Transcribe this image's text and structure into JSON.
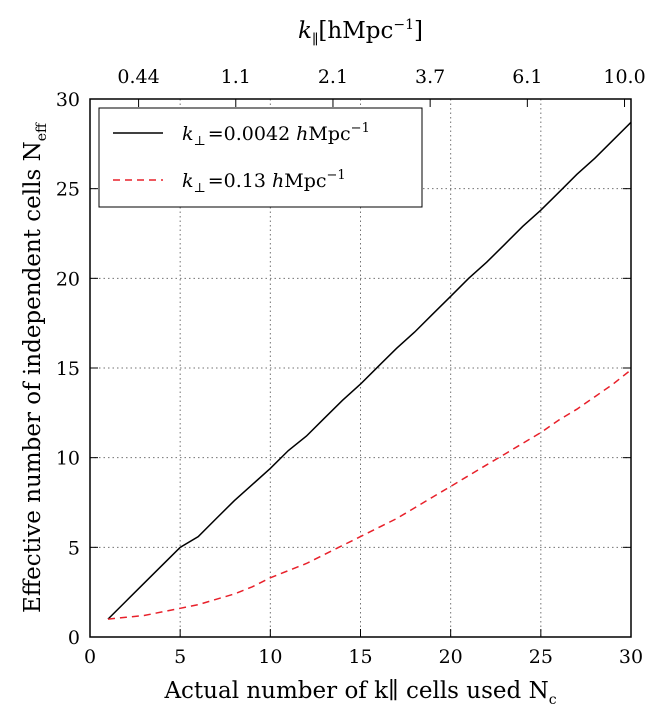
{
  "chart_data": {
    "type": "line",
    "x_label": "Actual number of k∥ cells used N",
    "x_label_sub": "c",
    "y_label": "Effective number of independent cells N",
    "y_label_sub": "eff",
    "top_label_k": "k",
    "top_label_sub": "∥",
    "top_label_units": "[hMpc",
    "top_label_exp": "−1",
    "top_label_close": "]",
    "xlim": [
      0,
      30
    ],
    "ylim": [
      0,
      30
    ],
    "x_ticks": [
      0,
      5,
      10,
      15,
      20,
      25,
      30
    ],
    "y_ticks": [
      0,
      5,
      10,
      15,
      20,
      25,
      30
    ],
    "top_ticks": [
      {
        "x": 4,
        "label": "0.44"
      },
      {
        "x": 10,
        "label": "1.1"
      },
      {
        "x": 16,
        "label": "2.1"
      },
      {
        "x": 22,
        "label": "3.7"
      },
      {
        "x": 28,
        "label": "6.1"
      },
      {
        "x": 34,
        "label": "10.0"
      }
    ],
    "grid": true,
    "legend_position": "top-left",
    "series": [
      {
        "name_k": "k",
        "name_sub": "⊥",
        "name_value": "=0.0042",
        "name_units": "hMpc",
        "name_exp": "−1",
        "color": "#000000",
        "dash": "solid",
        "x": [
          1,
          2,
          3,
          4,
          5,
          6,
          7,
          8,
          9,
          10,
          11,
          12,
          13,
          14,
          15,
          16,
          17,
          18,
          19,
          20,
          21,
          22,
          23,
          24,
          25,
          26,
          27,
          28,
          29,
          30
        ],
        "y": [
          1.0,
          2.0,
          3.0,
          4.0,
          5.0,
          5.6,
          6.6,
          7.6,
          8.5,
          9.4,
          10.4,
          11.2,
          12.2,
          13.2,
          14.1,
          15.1,
          16.1,
          17.0,
          18.0,
          19.0,
          20.0,
          20.9,
          21.9,
          22.9,
          23.8,
          24.8,
          25.8,
          26.7,
          27.7,
          28.7
        ]
      },
      {
        "name_k": "k",
        "name_sub": "⊥",
        "name_value": "=0.13",
        "name_units": "hMpc",
        "name_exp": "−1",
        "color": "#e8202a",
        "dash": "dashed",
        "x": [
          1,
          2,
          3,
          4,
          5,
          6,
          7,
          8,
          9,
          10,
          11,
          12,
          13,
          14,
          15,
          16,
          17,
          18,
          19,
          20,
          21,
          22,
          23,
          24,
          25,
          26,
          27,
          28,
          29,
          30
        ],
        "y": [
          1.0,
          1.1,
          1.2,
          1.4,
          1.6,
          1.8,
          2.1,
          2.4,
          2.8,
          3.3,
          3.7,
          4.1,
          4.6,
          5.1,
          5.6,
          6.1,
          6.6,
          7.2,
          7.8,
          8.4,
          9.0,
          9.6,
          10.2,
          10.8,
          11.4,
          12.1,
          12.7,
          13.4,
          14.1,
          14.9
        ]
      }
    ]
  }
}
